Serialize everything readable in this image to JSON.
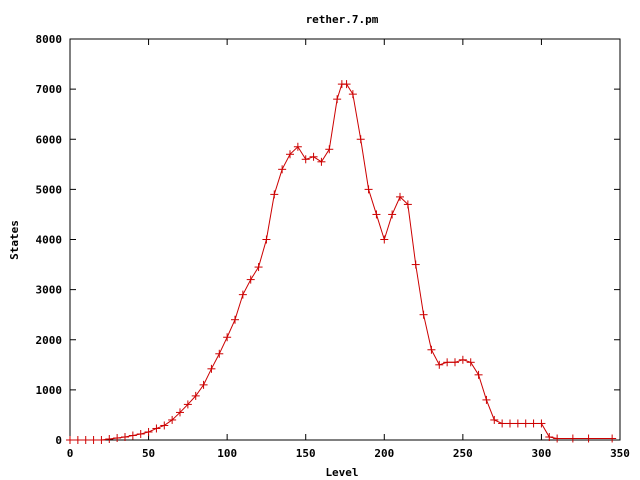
{
  "chart_data": {
    "type": "line",
    "title": "rether.7.pm",
    "xlabel": "Level",
    "ylabel": "States",
    "xlim": [
      0,
      350
    ],
    "ylim": [
      0,
      8000
    ],
    "xticks": [
      0,
      50,
      100,
      150,
      200,
      250,
      300,
      350
    ],
    "yticks": [
      0,
      1000,
      2000,
      3000,
      4000,
      5000,
      6000,
      7000,
      8000
    ],
    "grid": false,
    "legend": "none",
    "marker": "plus",
    "series": [
      {
        "color": "#cc0000",
        "x": [
          0,
          5,
          10,
          15,
          20,
          25,
          30,
          35,
          40,
          45,
          50,
          55,
          60,
          65,
          70,
          75,
          80,
          85,
          90,
          95,
          100,
          105,
          110,
          115,
          120,
          125,
          130,
          135,
          140,
          145,
          150,
          155,
          160,
          165,
          170,
          173,
          176,
          180,
          185,
          190,
          195,
          200,
          205,
          210,
          215,
          220,
          225,
          230,
          235,
          240,
          245,
          250,
          255,
          260,
          265,
          270,
          275,
          280,
          285,
          290,
          295,
          300,
          305,
          310,
          320,
          330,
          345
        ],
        "y": [
          0,
          0,
          0,
          0,
          0,
          20,
          40,
          60,
          90,
          120,
          160,
          230,
          290,
          400,
          550,
          710,
          880,
          1100,
          1420,
          1720,
          2050,
          2400,
          2900,
          3200,
          3450,
          4000,
          4900,
          5400,
          5700,
          5850,
          5600,
          5650,
          5550,
          5800,
          6800,
          7100,
          7100,
          6900,
          6000,
          5000,
          4500,
          4000,
          4500,
          4850,
          4700,
          3500,
          2500,
          1800,
          1500,
          1550,
          1550,
          1600,
          1550,
          1300,
          800,
          400,
          330,
          330,
          330,
          330,
          330,
          330,
          60,
          30,
          30,
          30,
          30
        ]
      }
    ]
  }
}
